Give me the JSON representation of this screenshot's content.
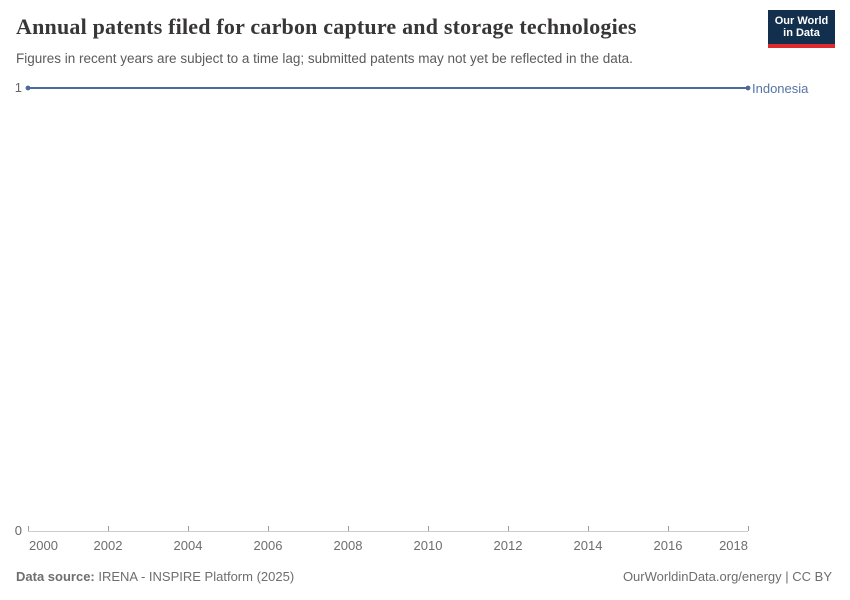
{
  "header": {
    "title": "Annual patents filed for carbon capture and storage technologies",
    "subtitle": "Figures in recent years are subject to a time lag; submitted patents may not yet be reflected in the data.",
    "logo": {
      "line1": "Our World",
      "line2": "in Data"
    }
  },
  "chart_data": {
    "type": "line",
    "title": "Annual patents filed for carbon capture and storage technologies",
    "x": [
      2000,
      2001,
      2002,
      2003,
      2004,
      2005,
      2006,
      2007,
      2008,
      2009,
      2010,
      2011,
      2012,
      2013,
      2014,
      2015,
      2016,
      2017,
      2018
    ],
    "series": [
      {
        "name": "Indonesia",
        "color": "#4c6a9c",
        "values": [
          1,
          1,
          1,
          1,
          1,
          1,
          1,
          1,
          1,
          1,
          1,
          1,
          1,
          1,
          1,
          1,
          1,
          1,
          1
        ]
      }
    ],
    "xlim": [
      2000,
      2018
    ],
    "ylim": [
      0,
      1
    ],
    "xticks": [
      2000,
      2002,
      2004,
      2006,
      2008,
      2010,
      2012,
      2014,
      2016,
      2018
    ],
    "yticks": [
      0,
      1
    ],
    "grid": false,
    "legend_position": "end-of-line label",
    "xlabel": "",
    "ylabel": ""
  },
  "footer": {
    "source_label": "Data source:",
    "source_value": " IRENA - INSPIRE Platform (2025)",
    "right_text": "OurWorldinData.org/energy | CC BY"
  },
  "colors": {
    "line": "#4c6a9c",
    "entity_label": "#5674a6",
    "logo_navy": "#12304e",
    "logo_red": "#dc2a2e",
    "axis_line": "#cccccc",
    "tick_mark": "#9e9e9e"
  }
}
